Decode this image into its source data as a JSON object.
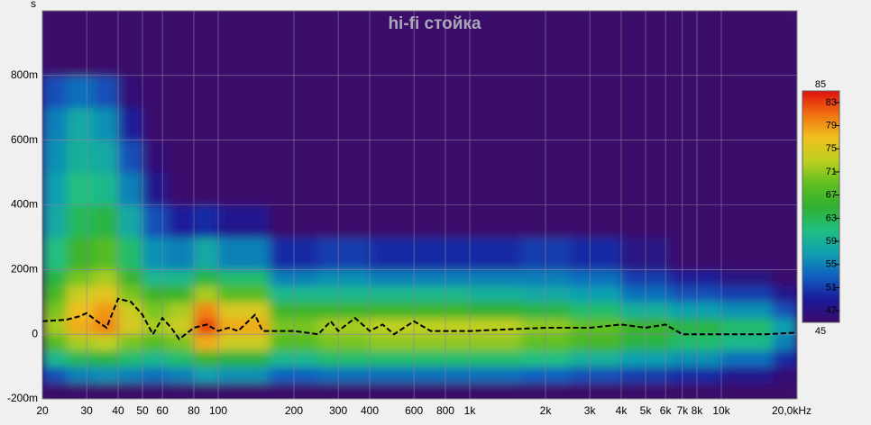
{
  "chart_data": {
    "type": "spectrogram",
    "title": "hi-fi стойка",
    "y_label": "s",
    "log_x": true,
    "grid": true,
    "xlim": [
      20,
      20000
    ],
    "xticks": [
      20,
      30,
      40,
      50,
      60,
      80,
      100,
      200,
      300,
      400,
      600,
      800,
      {
        "value": 1000,
        "label": "1k"
      },
      {
        "value": 2000,
        "label": "2k"
      },
      {
        "value": 3000,
        "label": "3k"
      },
      {
        "value": 4000,
        "label": "4k"
      },
      {
        "value": 5000,
        "label": "5k"
      },
      {
        "value": 6000,
        "label": "6k"
      },
      {
        "value": 7000,
        "label": "7k"
      },
      {
        "value": 8000,
        "label": "8k"
      },
      {
        "value": 10000,
        "label": "10k"
      },
      {
        "value": 20000,
        "label": "20,0kHz"
      }
    ],
    "ylim": [
      -0.2,
      1.0
    ],
    "yticks": [
      {
        "value": -0.2,
        "label": "-200m"
      },
      0,
      {
        "value": 0.2,
        "label": "200m"
      },
      {
        "value": 0.4,
        "label": "400m"
      },
      {
        "value": 0.6,
        "label": "600m"
      },
      {
        "value": 0.8,
        "label": "800m"
      }
    ],
    "zlim": [
      45,
      85
    ],
    "zticks": [
      45,
      47,
      51,
      55,
      59,
      63,
      67,
      71,
      75,
      79,
      83,
      85
    ],
    "colormap": [
      "#3a0a6a",
      "#1a1a9a",
      "#1060c0",
      "#10a0b0",
      "#20c080",
      "#30b030",
      "#60c020",
      "#c0d020",
      "#f0c020",
      "#f07010",
      "#e01010"
    ],
    "freq_bins": [
      20,
      25,
      32,
      40,
      50,
      63,
      80,
      100,
      160,
      250,
      400,
      630,
      1000,
      1600,
      2500,
      4000,
      6300,
      10000,
      16000,
      20000
    ],
    "time_bins": [
      -0.2,
      -0.15,
      -0.1,
      -0.05,
      0,
      0.05,
      0.1,
      0.15,
      0.2,
      0.3,
      0.4,
      0.5,
      0.6,
      0.7,
      0.8,
      1.0
    ],
    "z": [
      [
        45,
        45,
        45,
        45,
        45,
        45,
        45,
        45,
        45,
        45,
        45,
        45,
        45,
        45,
        45,
        45,
        45,
        45,
        45
      ],
      [
        52,
        55,
        56,
        55,
        54,
        55,
        57,
        56,
        53,
        54,
        54,
        54,
        54,
        53,
        52,
        51,
        50,
        48,
        46
      ],
      [
        60,
        63,
        64,
        62,
        60,
        62,
        66,
        64,
        60,
        62,
        62,
        62,
        62,
        61,
        59,
        57,
        56,
        54,
        50
      ],
      [
        68,
        72,
        73,
        70,
        68,
        70,
        78,
        74,
        68,
        70,
        71,
        71,
        71,
        69,
        67,
        64,
        62,
        60,
        55
      ],
      [
        72,
        78,
        80,
        75,
        72,
        74,
        83,
        78,
        70,
        72,
        73,
        73,
        73,
        71,
        69,
        66,
        64,
        62,
        57
      ],
      [
        70,
        77,
        79,
        74,
        70,
        72,
        80,
        75,
        66,
        66,
        66,
        66,
        65,
        64,
        62,
        59,
        57,
        56,
        52
      ],
      [
        67,
        74,
        76,
        70,
        66,
        66,
        72,
        68,
        60,
        60,
        60,
        60,
        59,
        58,
        57,
        54,
        52,
        51,
        48
      ],
      [
        64,
        70,
        72,
        66,
        60,
        60,
        64,
        62,
        55,
        56,
        55,
        55,
        55,
        55,
        54,
        51,
        49,
        47,
        45
      ],
      [
        61,
        66,
        68,
        62,
        56,
        55,
        58,
        55,
        50,
        51,
        50,
        50,
        50,
        51,
        50,
        47,
        45,
        45,
        45
      ],
      [
        58,
        63,
        64,
        58,
        52,
        49,
        50,
        48,
        45,
        45,
        45,
        45,
        45,
        45,
        45,
        45,
        45,
        45,
        45
      ],
      [
        57,
        61,
        60,
        55,
        48,
        45,
        45,
        45,
        45,
        45,
        45,
        45,
        45,
        45,
        45,
        45,
        45,
        45,
        45
      ],
      [
        56,
        59,
        58,
        52,
        46,
        45,
        45,
        45,
        45,
        45,
        45,
        45,
        45,
        45,
        45,
        45,
        45,
        45,
        45
      ],
      [
        55,
        58,
        56,
        49,
        45,
        45,
        45,
        45,
        45,
        45,
        45,
        45,
        45,
        45,
        45,
        45,
        45,
        45,
        45
      ],
      [
        52,
        54,
        52,
        46,
        45,
        45,
        45,
        45,
        45,
        45,
        45,
        45,
        45,
        45,
        45,
        45,
        45,
        45,
        45
      ],
      [
        45,
        45,
        45,
        45,
        45,
        45,
        45,
        45,
        45,
        45,
        45,
        45,
        45,
        45,
        45,
        45,
        45,
        45,
        45
      ]
    ],
    "series": [
      {
        "color": "#000000",
        "x": [
          20,
          25,
          28,
          30,
          33,
          36,
          40,
          45,
          50,
          55,
          60,
          65,
          70,
          80,
          90,
          100,
          110,
          120,
          140,
          150,
          200,
          250,
          280,
          300,
          350,
          400,
          450,
          500,
          600,
          700,
          1000,
          2000,
          3000,
          4000,
          5000,
          6000,
          7000,
          10000,
          15000,
          20000
        ],
        "values": [
          0.04,
          0.045,
          0.055,
          0.065,
          0.04,
          0.02,
          0.11,
          0.1,
          0.06,
          0.0,
          0.05,
          0.02,
          -0.015,
          0.02,
          0.03,
          0.01,
          0.02,
          0.01,
          0.06,
          0.01,
          0.01,
          0.0,
          0.04,
          0.01,
          0.05,
          0.01,
          0.03,
          0.0,
          0.04,
          0.01,
          0.01,
          0.02,
          0.02,
          0.03,
          0.02,
          0.03,
          0.0,
          0.0,
          0.0,
          0.005
        ]
      }
    ]
  }
}
